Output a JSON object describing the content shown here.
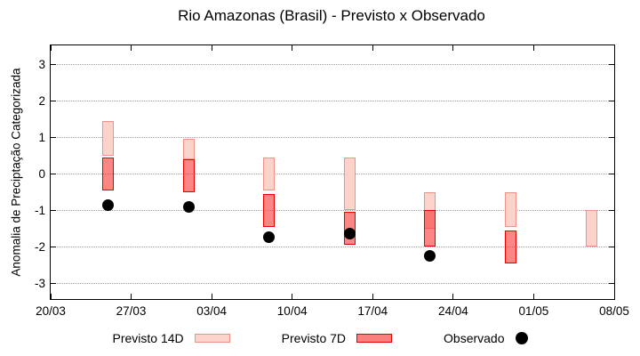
{
  "title": "Rio Amazonas (Brasil) - Previsto x Observado",
  "chart_data": {
    "type": "bar",
    "subtype": "range-bars-with-scatter",
    "title": "Rio Amazonas (Brasil) - Previsto x Observado",
    "ylabel": "Anomalia de Preciptação Categorizada",
    "xlabel": "",
    "x_tick_labels": [
      "20/03",
      "27/03",
      "03/04",
      "10/04",
      "17/04",
      "24/04",
      "01/05",
      "08/05"
    ],
    "x_tick_days": [
      0,
      7,
      14,
      21,
      28,
      35,
      42,
      49
    ],
    "y_ticks": [
      3,
      2,
      1,
      0,
      -1,
      -2,
      -3
    ],
    "ylim": [
      -3.44,
      3.53
    ],
    "x_range_days": 49,
    "grid": "horizontal dotted gray",
    "legend_position": "below plot, centered",
    "colors": {
      "previsto_14d_fill": "#fbd3cb",
      "previsto_14d_border": "#f19286",
      "previsto_7d_fill": "#fa807d",
      "previsto_7d_border": "#e60000",
      "observado": "#000000",
      "grid": "#9a9a9a",
      "axis": "#000000"
    },
    "series": [
      {
        "name": "Previsto 14D",
        "kind": "range",
        "points": [
          {
            "date": "25/03",
            "day": 5,
            "low": 0.5,
            "high": 1.45
          },
          {
            "date": "01/04",
            "day": 12,
            "low": 0.4,
            "high": 0.95
          },
          {
            "date": "08/04",
            "day": 19,
            "low": -0.45,
            "high": 0.45
          },
          {
            "date": "15/04",
            "day": 26,
            "low": -1.0,
            "high": 0.45
          },
          {
            "date": "22/04",
            "day": 33,
            "low": -1.5,
            "high": -0.5
          },
          {
            "date": "29/04",
            "day": 40,
            "low": -1.45,
            "high": -0.5
          },
          {
            "date": "06/05",
            "day": 47,
            "low": -2.0,
            "high": -1.0
          }
        ]
      },
      {
        "name": "Previsto 7D",
        "kind": "range",
        "points": [
          {
            "date": "25/03",
            "day": 5,
            "low": -0.45,
            "high": 0.45
          },
          {
            "date": "01/04",
            "day": 12,
            "low": -0.5,
            "high": 0.4
          },
          {
            "date": "08/04",
            "day": 19,
            "low": -1.45,
            "high": -0.55
          },
          {
            "date": "15/04",
            "day": 26,
            "low": -1.95,
            "high": -1.05
          },
          {
            "date": "22/04",
            "day": 33,
            "low": -2.0,
            "high": -1.0
          },
          {
            "date": "29/04",
            "day": 40,
            "low": -2.45,
            "high": -1.55
          }
        ]
      },
      {
        "name": "Observado",
        "kind": "scatter",
        "points": [
          {
            "date": "25/03",
            "day": 5,
            "value": -0.85
          },
          {
            "date": "01/04",
            "day": 12,
            "value": -0.9
          },
          {
            "date": "08/04",
            "day": 19,
            "value": -1.75
          },
          {
            "date": "15/04",
            "day": 26,
            "value": -1.65
          },
          {
            "date": "22/04",
            "day": 33,
            "value": -2.25
          }
        ]
      }
    ]
  }
}
